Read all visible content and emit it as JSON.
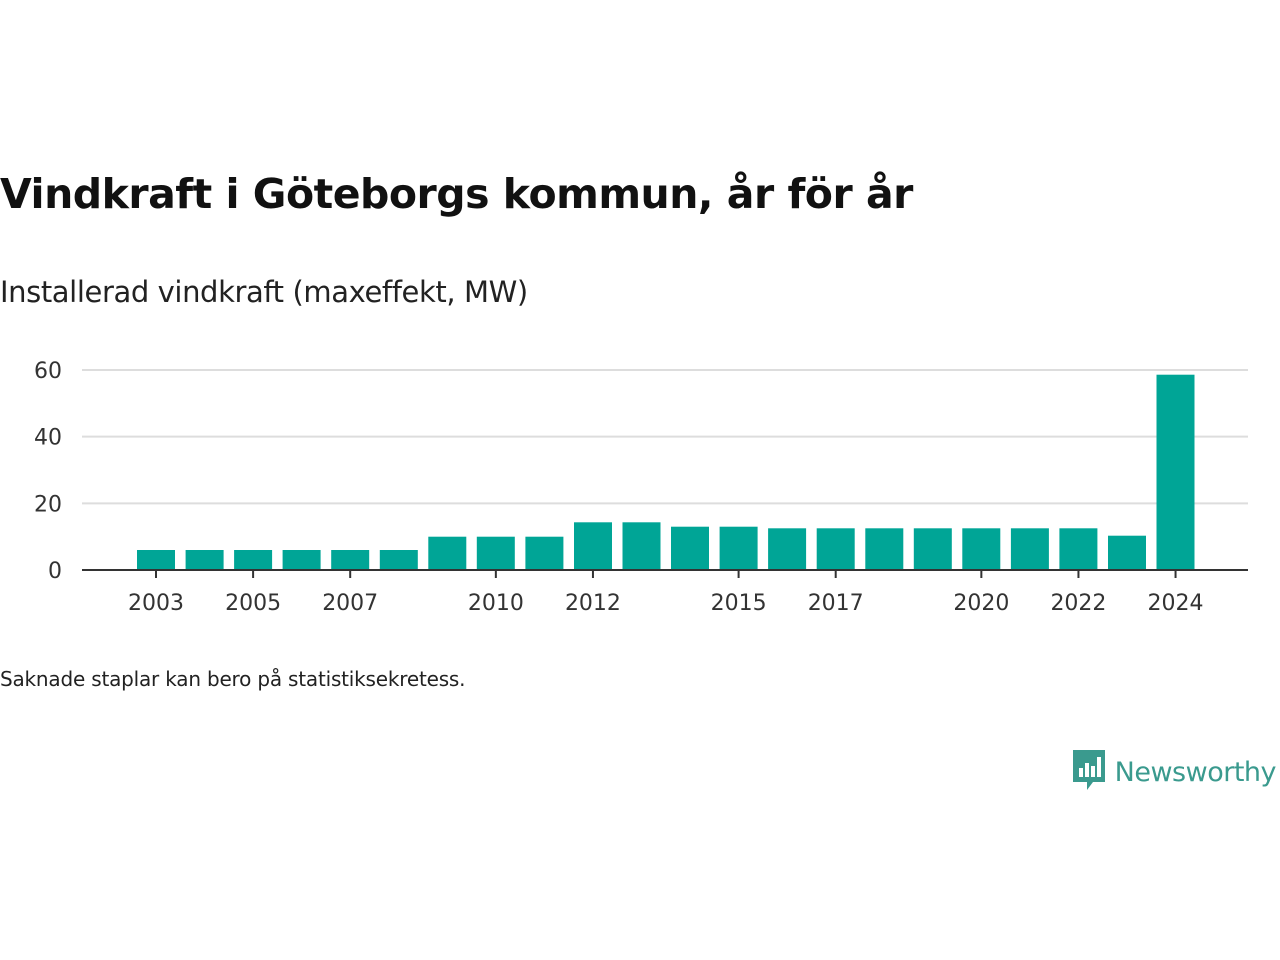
{
  "title": "Vindkraft i Göteborgs kommun, år för år",
  "subtitle": "Installerad vindkraft (maxeffekt, MW)",
  "footnote": "Saknade staplar kan bero på statistiksekretess.",
  "brand": {
    "name": "Newsworthy",
    "logo_icon": "newsworthy-logo-icon",
    "color": "#3a9a8e"
  },
  "chart_data": {
    "type": "bar",
    "categories": [
      "2003",
      "2004",
      "2005",
      "2006",
      "2007",
      "2008",
      "2009",
      "2010",
      "2011",
      "2012",
      "2013",
      "2014",
      "2015",
      "2016",
      "2017",
      "2018",
      "2019",
      "2020",
      "2021",
      "2022",
      "2023",
      "2024"
    ],
    "values": [
      6,
      6,
      6,
      6,
      6,
      6,
      10,
      10,
      10,
      14.3,
      14.3,
      13,
      13,
      12.5,
      12.5,
      12.5,
      12.5,
      12.5,
      12.5,
      12.5,
      10.3,
      58.6
    ],
    "tick_labels": [
      "2003",
      "2005",
      "2007",
      "2010",
      "2012",
      "2015",
      "2017",
      "2020",
      "2022",
      "2024"
    ],
    "y_ticks": [
      0,
      20,
      40,
      60
    ],
    "ylim": [
      0,
      60
    ],
    "bar_color": "#00a596",
    "grid": true
  }
}
